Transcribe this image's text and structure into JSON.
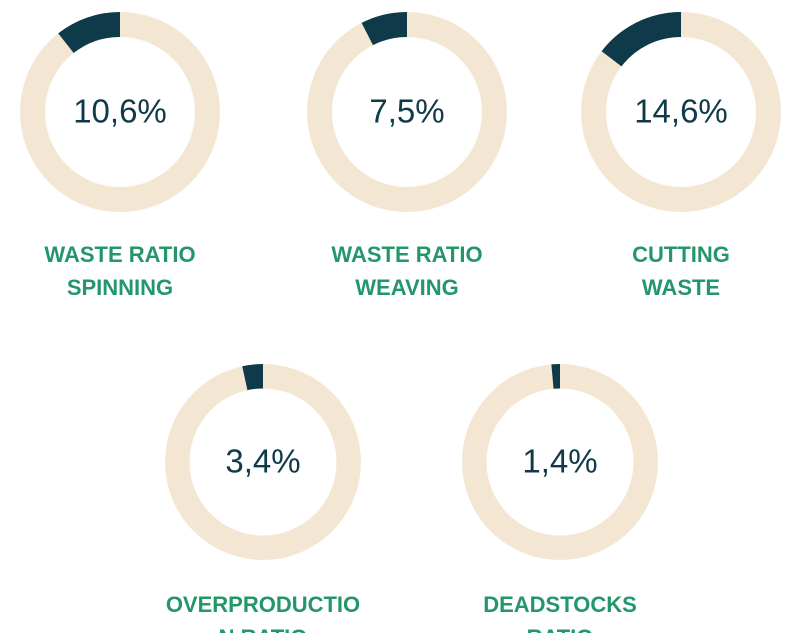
{
  "chart_data": [
    {
      "type": "donut",
      "title": "WASTE RATIO SPINNING",
      "values": [
        10.6
      ],
      "value_labels": [
        "10,6%"
      ],
      "color": "#0f3a4a",
      "track_color": "#f3e7d3"
    },
    {
      "type": "donut",
      "title": "WASTE RATIO WEAVING",
      "values": [
        7.5
      ],
      "value_labels": [
        "7,5%"
      ],
      "color": "#0f3a4a",
      "track_color": "#f3e7d3"
    },
    {
      "type": "donut",
      "title": "CUTTING WASTE",
      "values": [
        14.6
      ],
      "value_labels": [
        "14,6%"
      ],
      "color": "#0f3a4a",
      "track_color": "#f3e7d3"
    },
    {
      "type": "donut",
      "title": "OVERPRODUCTION RATIO",
      "values": [
        3.4
      ],
      "value_labels": [
        "3,4%"
      ],
      "color": "#0f3a4a",
      "track_color": "#f3e7d3"
    },
    {
      "type": "donut",
      "title": "DEADSTOCKS RATIO",
      "values": [
        1.4
      ],
      "value_labels": [
        "1,4%"
      ],
      "color": "#0f3a4a",
      "track_color": "#f3e7d3"
    }
  ]
}
